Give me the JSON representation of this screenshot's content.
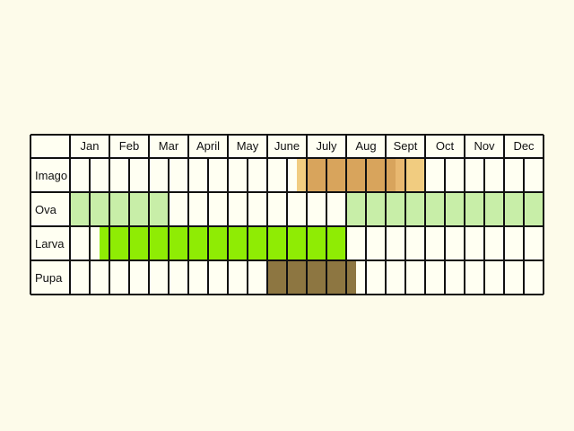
{
  "chart_data": {
    "type": "table",
    "title": "",
    "months": [
      "Jan",
      "Feb",
      "Mar",
      "April",
      "May",
      "June",
      "July",
      "Aug",
      "Sept",
      "Oct",
      "Nov",
      "Dec"
    ],
    "half_month_columns": 2,
    "rows": [
      {
        "label": "Imago",
        "periods": [
          {
            "start": 6.75,
            "end": 7.0,
            "color": "#f1cc80"
          },
          {
            "start": 7.0,
            "end": 9.25,
            "color": "#d8a45c"
          },
          {
            "start": 9.25,
            "end": 9.5,
            "color": "#e8b870"
          },
          {
            "start": 9.5,
            "end": 10.0,
            "color": "#f1cc80"
          }
        ]
      },
      {
        "label": "Ova",
        "periods": [
          {
            "start": 1.0,
            "end": 3.5,
            "color": "#c8eea8"
          },
          {
            "start": 8.0,
            "end": 13.0,
            "color": "#c8eea8"
          }
        ]
      },
      {
        "label": "Larva",
        "periods": [
          {
            "start": 1.75,
            "end": 8.0,
            "color": "#8fec04"
          }
        ]
      },
      {
        "label": "Pupa",
        "periods": [
          {
            "start": 6.0,
            "end": 8.25,
            "color": "#8d7641"
          }
        ]
      }
    ],
    "colors": {
      "background": "#fdfbea",
      "cell": "#fffff2",
      "grid": "#111111"
    }
  }
}
